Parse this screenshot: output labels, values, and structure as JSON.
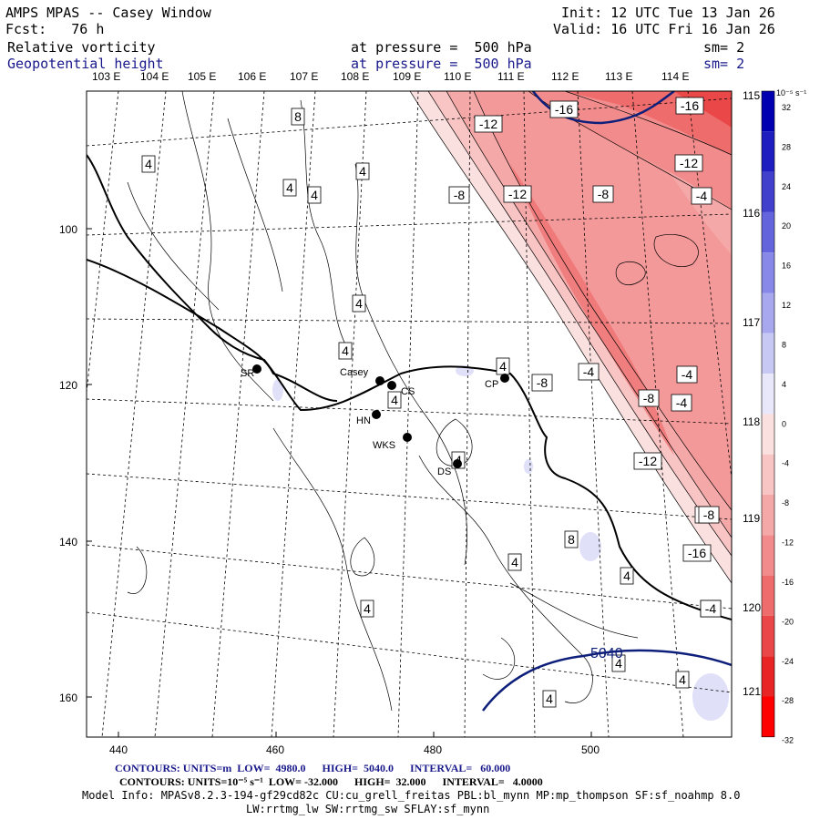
{
  "header": {
    "title": "AMPS MPAS -- Casey Window",
    "forecast": "Fcst:   76 h",
    "init": "Init: 12 UTC Tue 13 Jan 26",
    "valid": "Valid: 16 UTC Fri 16 Jan 26",
    "field1_name": "Relative vorticity",
    "field1_level": "at pressure =  500 hPa",
    "field1_sm": "sm= 2",
    "field2_name": "Geopotential height",
    "field2_level": "at pressure =  500 hPa",
    "field2_sm": "sm= 2"
  },
  "colors": {
    "height_contour": "#0d1f7a",
    "positive_scale": [
      "#e8e8fa",
      "#c8c8f4",
      "#a8a8ee",
      "#8888e8",
      "#6464dc",
      "#4040cc",
      "#1e1ec0",
      "#0000b0"
    ],
    "negative_scale": [
      "#fbe0e0",
      "#f8c4c4",
      "#f5a8a8",
      "#f28c8c",
      "#ee6c6c",
      "#ea4848",
      "#e82424",
      "#ff0000"
    ]
  },
  "top_longitudes": [
    "103 E",
    "104 E",
    "105 E",
    "106 E",
    "107 E",
    "108 E",
    "109 E",
    "110 E",
    "111 E",
    "112 E",
    "113 E",
    "114 E"
  ],
  "right_longitudes": [
    "115 E",
    "116 E",
    "117 E",
    "118 E",
    "119 E",
    "120 E",
    "121 E"
  ],
  "x_axis_ticks": [
    "440",
    "460",
    "480",
    "500"
  ],
  "y_axis_ticks": [
    "100",
    "120",
    "140",
    "160"
  ],
  "colorbar": {
    "units": "10⁻⁵ s⁻¹",
    "labels": [
      "32",
      "28",
      "24",
      "20",
      "16",
      "12",
      "8",
      "4",
      "0",
      "-4",
      "-8",
      "-12",
      "-16",
      "-20",
      "-24",
      "-28",
      "-32"
    ]
  },
  "stations": [
    {
      "id": "SR",
      "label": "SR"
    },
    {
      "id": "casey",
      "label": "Casey"
    },
    {
      "id": "CS",
      "label": "CS"
    },
    {
      "id": "HN",
      "label": "HN"
    },
    {
      "id": "WKS",
      "label": "WKS"
    },
    {
      "id": "DS",
      "label": "DS"
    },
    {
      "id": "CP",
      "label": "CP"
    }
  ],
  "contour_labels": {
    "vorticity": [
      "8",
      "4",
      "4",
      "4",
      "4",
      "4",
      "4",
      "4",
      "4",
      "4",
      "4",
      "8",
      "4",
      "4",
      "4",
      "4",
      "4",
      "8",
      "-12",
      "-16",
      "-16",
      "-12",
      "-8",
      "-12",
      "-8",
      "-4",
      "-4",
      "-4",
      "-8",
      "-4",
      "-4",
      "-8",
      "-12",
      "-8",
      "-16",
      "-4"
    ],
    "height": "5040"
  },
  "footer": {
    "line1": "CONTOURS: UNITS=m  LOW=  4980.0      HIGH=  5040.0      INTERVAL=   60.000",
    "line2": "CONTOURS: UNITS=10⁻⁵ s⁻¹  LOW= -32.000      HIGH=  32.000      INTERVAL=   4.0000",
    "line3": "Model Info: MPASv8.2.3-194-gf29cd82c CU:cu_grell_freitas PBL:bl_mynn MP:mp_thompson SF:sf_noahmp 8.0",
    "line4": "LW:rrtmg_lw SW:rrtmg_sw SFLAY:sf_mynn"
  }
}
